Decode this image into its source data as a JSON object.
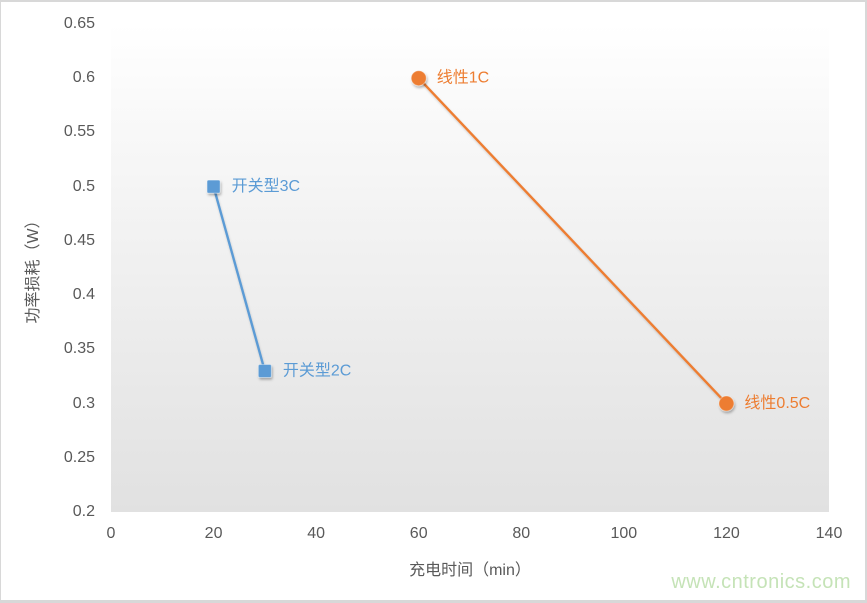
{
  "chart_data": {
    "type": "line",
    "title": "",
    "xlabel": "充电时间（min）",
    "ylabel": "功率损耗（W）",
    "xlim": [
      0,
      140
    ],
    "ylim": [
      0.2,
      0.65
    ],
    "x_ticks": [
      0,
      20,
      40,
      60,
      80,
      100,
      120,
      140
    ],
    "y_ticks": [
      0.2,
      0.25,
      0.3,
      0.35,
      0.4,
      0.45,
      0.5,
      0.55,
      0.6,
      0.65
    ],
    "grid": false,
    "legend_position": "none",
    "plot_background": {
      "top_color": "#ffffff",
      "bottom_color": "#e1e1e1"
    },
    "axis_text_color": "#595959",
    "series": [
      {
        "name": "开关型",
        "color": "#5B9BD5",
        "marker": "square",
        "points": [
          {
            "x": 20,
            "y": 0.5,
            "label": "开关型3C"
          },
          {
            "x": 30,
            "y": 0.33,
            "label": "开关型2C"
          }
        ]
      },
      {
        "name": "线性",
        "color": "#ED7D31",
        "marker": "circle",
        "points": [
          {
            "x": 60,
            "y": 0.6,
            "label": "线性1C"
          },
          {
            "x": 120,
            "y": 0.3,
            "label": "线性0.5C"
          }
        ]
      }
    ]
  },
  "watermark": {
    "text": "www.cntronics.com",
    "color": "#c5e3b7"
  }
}
